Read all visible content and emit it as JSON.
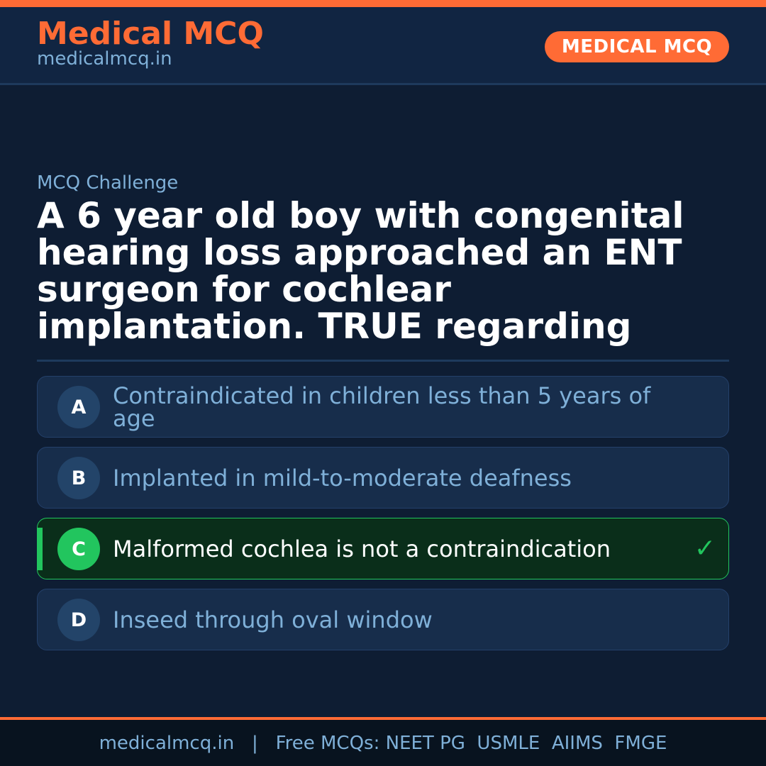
{
  "header": {
    "brand": "Medical MCQ",
    "site": "medicalmcq.in",
    "badge": "MEDICAL MCQ"
  },
  "kicker": "MCQ Challenge",
  "question": "A 6 year old boy with congenital hearing loss approached an ENT surgeon for cochlear implantation. TRUE regarding",
  "options": [
    {
      "letter": "A",
      "text": "Contraindicated in children less than 5 years of age"
    },
    {
      "letter": "B",
      "text": "Implanted in mild-to-moderate deafness"
    },
    {
      "letter": "C",
      "text": "Malformed cochlea is not a contraindication",
      "correct": true
    },
    {
      "letter": "D",
      "text": "Inseed through oval window"
    }
  ],
  "check_icon": "check-icon",
  "footer": {
    "site": "medicalmcq.in",
    "separator": "|",
    "text": "Free MCQs: NEET PG  USMLE  AIIMS  FMGE"
  },
  "colors": {
    "accent": "#ff6b35",
    "correct": "#22c55e",
    "background": "#0e1d33"
  }
}
